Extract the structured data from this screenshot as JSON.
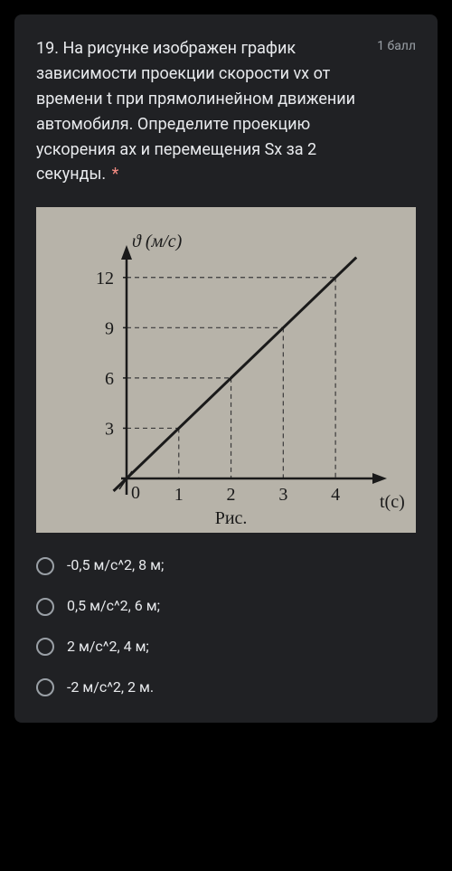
{
  "question": {
    "text": "19. На рисунке изображен график зависимости проекции скорости vx от времени t при прямолинейном движении автомобиля. Определите проекцию ускорения ax и перемещения Sx за 2 секунды.",
    "required_marker": "*",
    "points_label": "1 балл"
  },
  "chart": {
    "type": "line",
    "background_color": "#b7b3a9",
    "axis_color": "#1a1a1a",
    "axis_stroke_width": 2.5,
    "guide_color": "#3a3a3a",
    "guide_dash": "5,4",
    "guide_stroke_width": 1.2,
    "line_color": "#1a1a1a",
    "line_stroke_width": 3,
    "tick_fontsize": 20,
    "label_fontsize": 20,
    "label_font": "serif",
    "y_label": "ϑ (м/с)",
    "x_label": "t(с)",
    "caption": "Рис.",
    "xlim": [
      0,
      4.5
    ],
    "ylim": [
      0,
      13.5
    ],
    "y_ticks": [
      3,
      6,
      9,
      12
    ],
    "x_ticks": [
      1,
      2,
      3,
      4
    ],
    "origin_label": "0",
    "data_points": [
      [
        0,
        0
      ],
      [
        1,
        3
      ],
      [
        2,
        6
      ],
      [
        3,
        9
      ],
      [
        4,
        12
      ]
    ],
    "line_extent": [
      [
        -0.25,
        -0.75
      ],
      [
        4.4,
        13.2
      ]
    ]
  },
  "options": [
    {
      "label": "-0,5 м/с^2, 8 м;"
    },
    {
      "label": "0,5 м/с^2, 6 м;"
    },
    {
      "label": "2 м/с^2, 4 м;"
    },
    {
      "label": "-2 м/с^2, 2 м."
    }
  ]
}
